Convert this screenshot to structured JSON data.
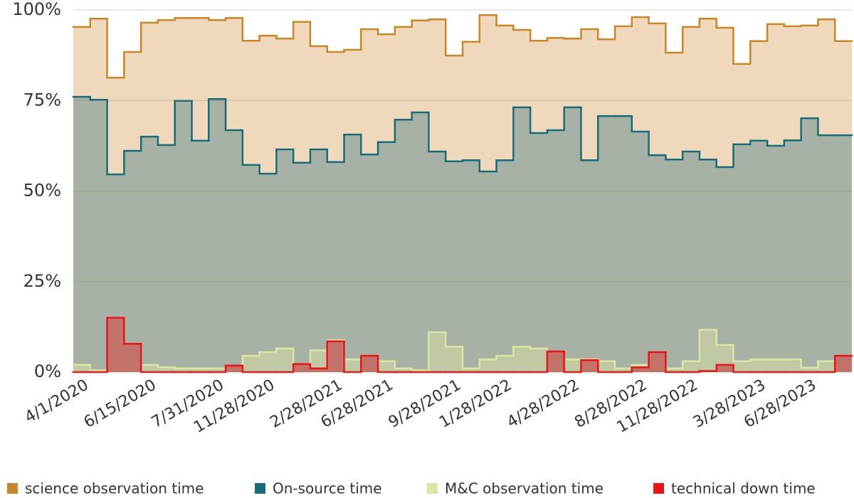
{
  "chart_data": {
    "type": "step-area",
    "categories": [
      "4/1/2020",
      null,
      null,
      null,
      "6/15/2020",
      null,
      null,
      null,
      "7/31/2020",
      null,
      null,
      "11/28/2020",
      null,
      null,
      null,
      "2/28/2021",
      null,
      null,
      "6/28/2021",
      null,
      null,
      null,
      "9/28/2021",
      null,
      null,
      "1/28/2022",
      null,
      null,
      null,
      "4/28/2022",
      null,
      null,
      null,
      "8/28/2022",
      null,
      null,
      "11/28/2022",
      null,
      null,
      null,
      "3/28/2023",
      null,
      null,
      "6/28/2023",
      null,
      null
    ],
    "series": [
      {
        "name": "science observation time",
        "color": "#c8862a",
        "fill": "#efd8bc",
        "values": [
          95.3,
          97.6,
          81.3,
          88.4,
          96.5,
          97.2,
          97.8,
          97.8,
          97.2,
          97.8,
          91.5,
          92.9,
          92.1,
          96.7,
          90.0,
          88.4,
          89.0,
          94.7,
          93.3,
          95.3,
          97.1,
          97.4,
          87.4,
          91.2,
          98.6,
          95.7,
          94.5,
          91.5,
          92.3,
          92.1,
          94.7,
          91.9,
          95.5,
          98.0,
          96.3,
          88.2,
          95.3,
          97.6,
          95.1,
          85.1,
          91.4,
          96.1,
          95.5,
          95.7,
          97.4,
          91.4
        ]
      },
      {
        "name": "On-source time",
        "color": "#1a6b7a",
        "fill": "#a7b2a4",
        "values": [
          76.0,
          75.2,
          54.6,
          61.1,
          65.0,
          62.7,
          74.9,
          63.9,
          75.4,
          66.8,
          57.2,
          54.8,
          61.5,
          57.8,
          61.5,
          58.0,
          65.6,
          60.1,
          63.5,
          69.7,
          71.7,
          60.9,
          58.2,
          58.5,
          55.4,
          58.5,
          73.1,
          66.0,
          66.8,
          73.1,
          58.5,
          70.7,
          70.7,
          66.4,
          59.9,
          58.7,
          60.9,
          58.7,
          56.6,
          62.9,
          63.9,
          62.5,
          64.0,
          70.1,
          65.4,
          65.4
        ]
      },
      {
        "name": "M&C observation time",
        "color": "#dbe6a6",
        "fill": "#c0c9a4",
        "values": [
          2.0,
          0.5,
          1.5,
          1.2,
          2.0,
          1.3,
          1.0,
          1.0,
          1.0,
          1.0,
          4.5,
          5.5,
          6.5,
          2.0,
          6.0,
          8.8,
          3.5,
          3.5,
          3.0,
          1.0,
          0.5,
          11.0,
          7.0,
          1.0,
          3.5,
          4.5,
          7.0,
          6.5,
          5.5,
          3.5,
          3.5,
          3.0,
          1.0,
          2.0,
          4.0,
          1.0,
          3.0,
          11.7,
          7.5,
          3.0,
          3.5,
          3.5,
          3.5,
          1.2,
          3.0,
          3.0
        ]
      },
      {
        "name": "technical down time",
        "color": "#e8141a",
        "fill": "#c27268",
        "values": [
          0,
          0,
          15.0,
          7.8,
          0,
          0,
          0,
          0,
          0,
          1.8,
          0,
          0,
          0,
          2.2,
          1.0,
          8.5,
          0,
          4.5,
          0,
          0,
          0,
          0,
          0,
          0,
          0,
          0,
          0,
          0,
          5.7,
          0,
          3.3,
          0,
          0,
          1.3,
          5.5,
          0,
          0,
          0.3,
          2.0,
          0,
          0,
          0,
          0,
          0,
          0,
          4.5
        ]
      }
    ],
    "ylim": [
      0,
      100
    ],
    "yticks": [
      {
        "value": 0,
        "label": "0%"
      },
      {
        "value": 25,
        "label": "25%"
      },
      {
        "value": 50,
        "label": "50%"
      },
      {
        "value": 75,
        "label": "75%"
      },
      {
        "value": 100,
        "label": "100%"
      }
    ],
    "grid": true,
    "legend": "bottom"
  }
}
